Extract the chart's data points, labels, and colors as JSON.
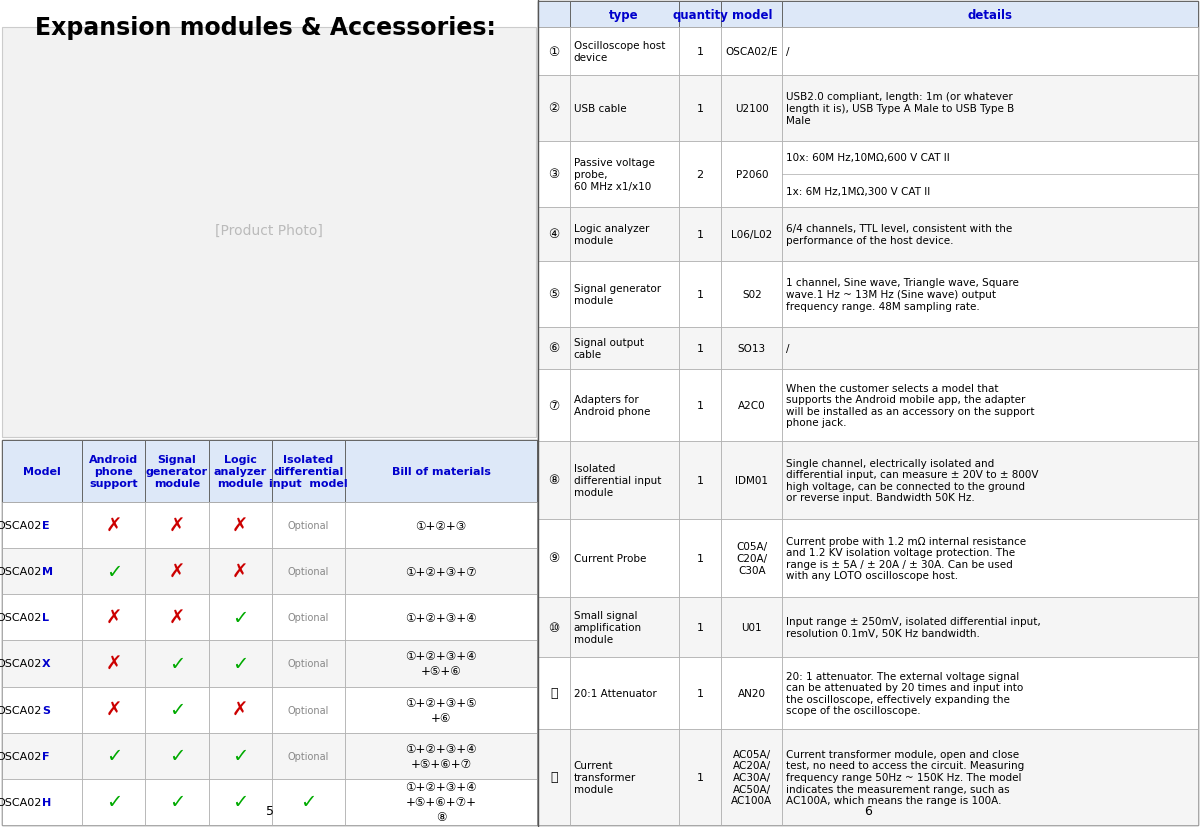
{
  "title": "Expansion modules & Accessories:",
  "bg_color": "#ffffff",
  "header_text_color": "#0000cc",
  "header_bg_color": "#dde8f8",
  "check_color": "#00aa00",
  "cross_color": "#cc0000",
  "optional_color": "#888888",
  "right_rows": [
    {
      "num": "①",
      "type": "Oscilloscope host\ndevice",
      "quantity": "1",
      "model": "OSCA02/E",
      "details": "/",
      "rh_weight": 1.6
    },
    {
      "num": "②",
      "type": "USB cable",
      "quantity": "1",
      "model": "U2100",
      "details": "USB2.0 compliant, length: 1m (or whatever\nlength it is), USB Type A Male to USB Type B\nMale",
      "rh_weight": 2.2
    },
    {
      "num": "③",
      "type": "Passive voltage\nprobe,\n60 MHz x1/x10",
      "quantity": "2",
      "model": "P2060",
      "details_top": "10x: 60M Hz,10MΩ,600 V CAT II",
      "details_bot": "1x: 6M Hz,1MΩ,300 V CAT II",
      "split": true,
      "rh_weight": 2.2
    },
    {
      "num": "④",
      "type": "Logic analyzer\nmodule",
      "quantity": "1",
      "model": "L06/L02",
      "details": "6/4 channels, TTL level, consistent with the\nperformance of the host device.",
      "rh_weight": 1.8
    },
    {
      "num": "⑤",
      "type": "Signal generator\nmodule",
      "quantity": "1",
      "model": "S02",
      "details": "1 channel, Sine wave, Triangle wave, Square\nwave.1 Hz ~ 13M Hz (Sine wave) output\nfrequency range. 48M sampling rate.",
      "rh_weight": 2.2
    },
    {
      "num": "⑥",
      "type": "Signal output\ncable",
      "quantity": "1",
      "model": "SO13",
      "details": "/",
      "rh_weight": 1.4
    },
    {
      "num": "⑦",
      "type": "Adapters for\nAndroid phone",
      "quantity": "1",
      "model": "A2C0",
      "details": "When the customer selects a model that\nsupports the Android mobile app, the adapter\nwill be installed as an accessory on the support\nphone jack.",
      "rh_weight": 2.4
    },
    {
      "num": "⑧",
      "type": "Isolated\ndifferential input\nmodule",
      "quantity": "1",
      "model": "IDM01",
      "details": "Single channel, electrically isolated and\ndifferential input, can measure ± 20V to ± 800V\nhigh voltage, can be connected to the ground\nor reverse input. Bandwidth 50K Hz.",
      "rh_weight": 2.6
    },
    {
      "num": "⑨",
      "type": "Current Probe",
      "quantity": "1",
      "model": "C05A/\nC20A/\nC30A",
      "details": "Current probe with 1.2 mΩ internal resistance\nand 1.2 KV isolation voltage protection. The\nrange is ± 5A / ± 20A / ± 30A. Can be used\nwith any LOTO oscilloscope host.",
      "rh_weight": 2.6
    },
    {
      "num": "⑩",
      "type": "Small signal\namplification\nmodule",
      "quantity": "1",
      "model": "U01",
      "details": "Input range ± 250mV, isolated differential input,\nresolution 0.1mV, 50K Hz bandwidth.",
      "rh_weight": 2.0
    },
    {
      "num": "⑪",
      "type": "20:1 Attenuator",
      "quantity": "1",
      "model": "AN20",
      "details": "20: 1 attenuator. The external voltage signal\ncan be attenuated by 20 times and input into\nthe oscilloscope, effectively expanding the\nscope of the oscilloscope.",
      "rh_weight": 2.4
    },
    {
      "num": "⑫",
      "type": "Current\ntransformer\nmodule",
      "quantity": "1",
      "model": "AC05A/\nAC20A/\nAC30A/\nAC50A/\nAC100A",
      "details": "Current transformer module, open and close\ntest, no need to access the circuit. Measuring\nfrequency range 50Hz ~ 150K Hz. The model\nindicates the measurement range, such as\nAC100A, which means the range is 100A.",
      "rh_weight": 3.2
    }
  ],
  "bottom_table_headers": [
    "Model",
    "Android\nphone\nsupport",
    "Signal\ngenerator\nmodule",
    "Logic\nanalyzer\nmodule",
    "Isolated\ndifferential\ninput  model",
    "Bill of materials"
  ],
  "bottom_rows": [
    {
      "model_base": "OSCA02",
      "model_suffix": "E",
      "android": false,
      "signal": false,
      "logic": false,
      "isolated_check": false,
      "bom": "①+②+③"
    },
    {
      "model_base": "OSCA02",
      "model_suffix": "M",
      "android": true,
      "signal": false,
      "logic": false,
      "isolated_check": false,
      "bom": "①+②+③+⑦"
    },
    {
      "model_base": "OSCA02",
      "model_suffix": "L",
      "android": false,
      "signal": false,
      "logic": true,
      "isolated_check": false,
      "bom": "①+②+③+④"
    },
    {
      "model_base": "OSCA02",
      "model_suffix": "X",
      "android": false,
      "signal": true,
      "logic": true,
      "isolated_check": false,
      "bom": "①+②+③+④\n+⑤+⑥"
    },
    {
      "model_base": "OSCA02",
      "model_suffix": "S",
      "android": false,
      "signal": true,
      "logic": false,
      "isolated_check": false,
      "bom": "①+②+③+⑤\n+⑥"
    },
    {
      "model_base": "OSCA02",
      "model_suffix": "F",
      "android": true,
      "signal": true,
      "logic": true,
      "isolated_check": false,
      "bom": "①+②+③+④\n+⑤+⑥+⑦"
    },
    {
      "model_base": "OSCA02",
      "model_suffix": "H",
      "android": true,
      "signal": true,
      "logic": true,
      "isolated_check": true,
      "bom": "①+②+③+④\n+⑤+⑥+⑦+\n⑧"
    }
  ],
  "suffix_color": "#0000cc"
}
